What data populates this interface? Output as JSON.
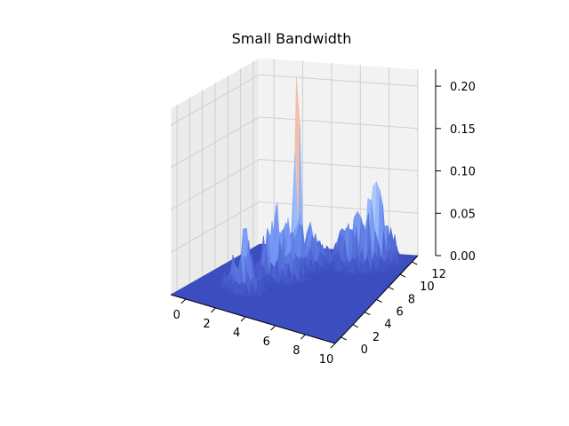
{
  "chart_data": {
    "type": "surface",
    "title": "Small Bandwidth",
    "xlabel": "",
    "ylabel": "",
    "zlabel": "",
    "xlim": [
      -1,
      10
    ],
    "ylim": [
      -1,
      13
    ],
    "zlim": [
      0,
      0.22
    ],
    "x_ticks": [
      0,
      2,
      4,
      6,
      8,
      10
    ],
    "y_ticks": [
      0,
      2,
      4,
      6,
      8,
      10,
      12
    ],
    "z_ticks": [
      0.0,
      0.05,
      0.1,
      0.15,
      0.2
    ],
    "x_tick_labels": [
      "0",
      "2",
      "4",
      "6",
      "8",
      "10"
    ],
    "y_tick_labels": [
      "0",
      "2",
      "4",
      "6",
      "8",
      "10",
      "12"
    ],
    "z_tick_labels": [
      "0.00",
      "0.05",
      "0.10",
      "0.15",
      "0.20"
    ],
    "colormap": "coolwarm",
    "colormap_stops": [
      "#3b4cc0",
      "#6f92f3",
      "#aac7fd",
      "#dddcdc",
      "#f7b89c",
      "#e7745b",
      "#b40426"
    ],
    "peak_value": 0.22,
    "grid": true
  }
}
